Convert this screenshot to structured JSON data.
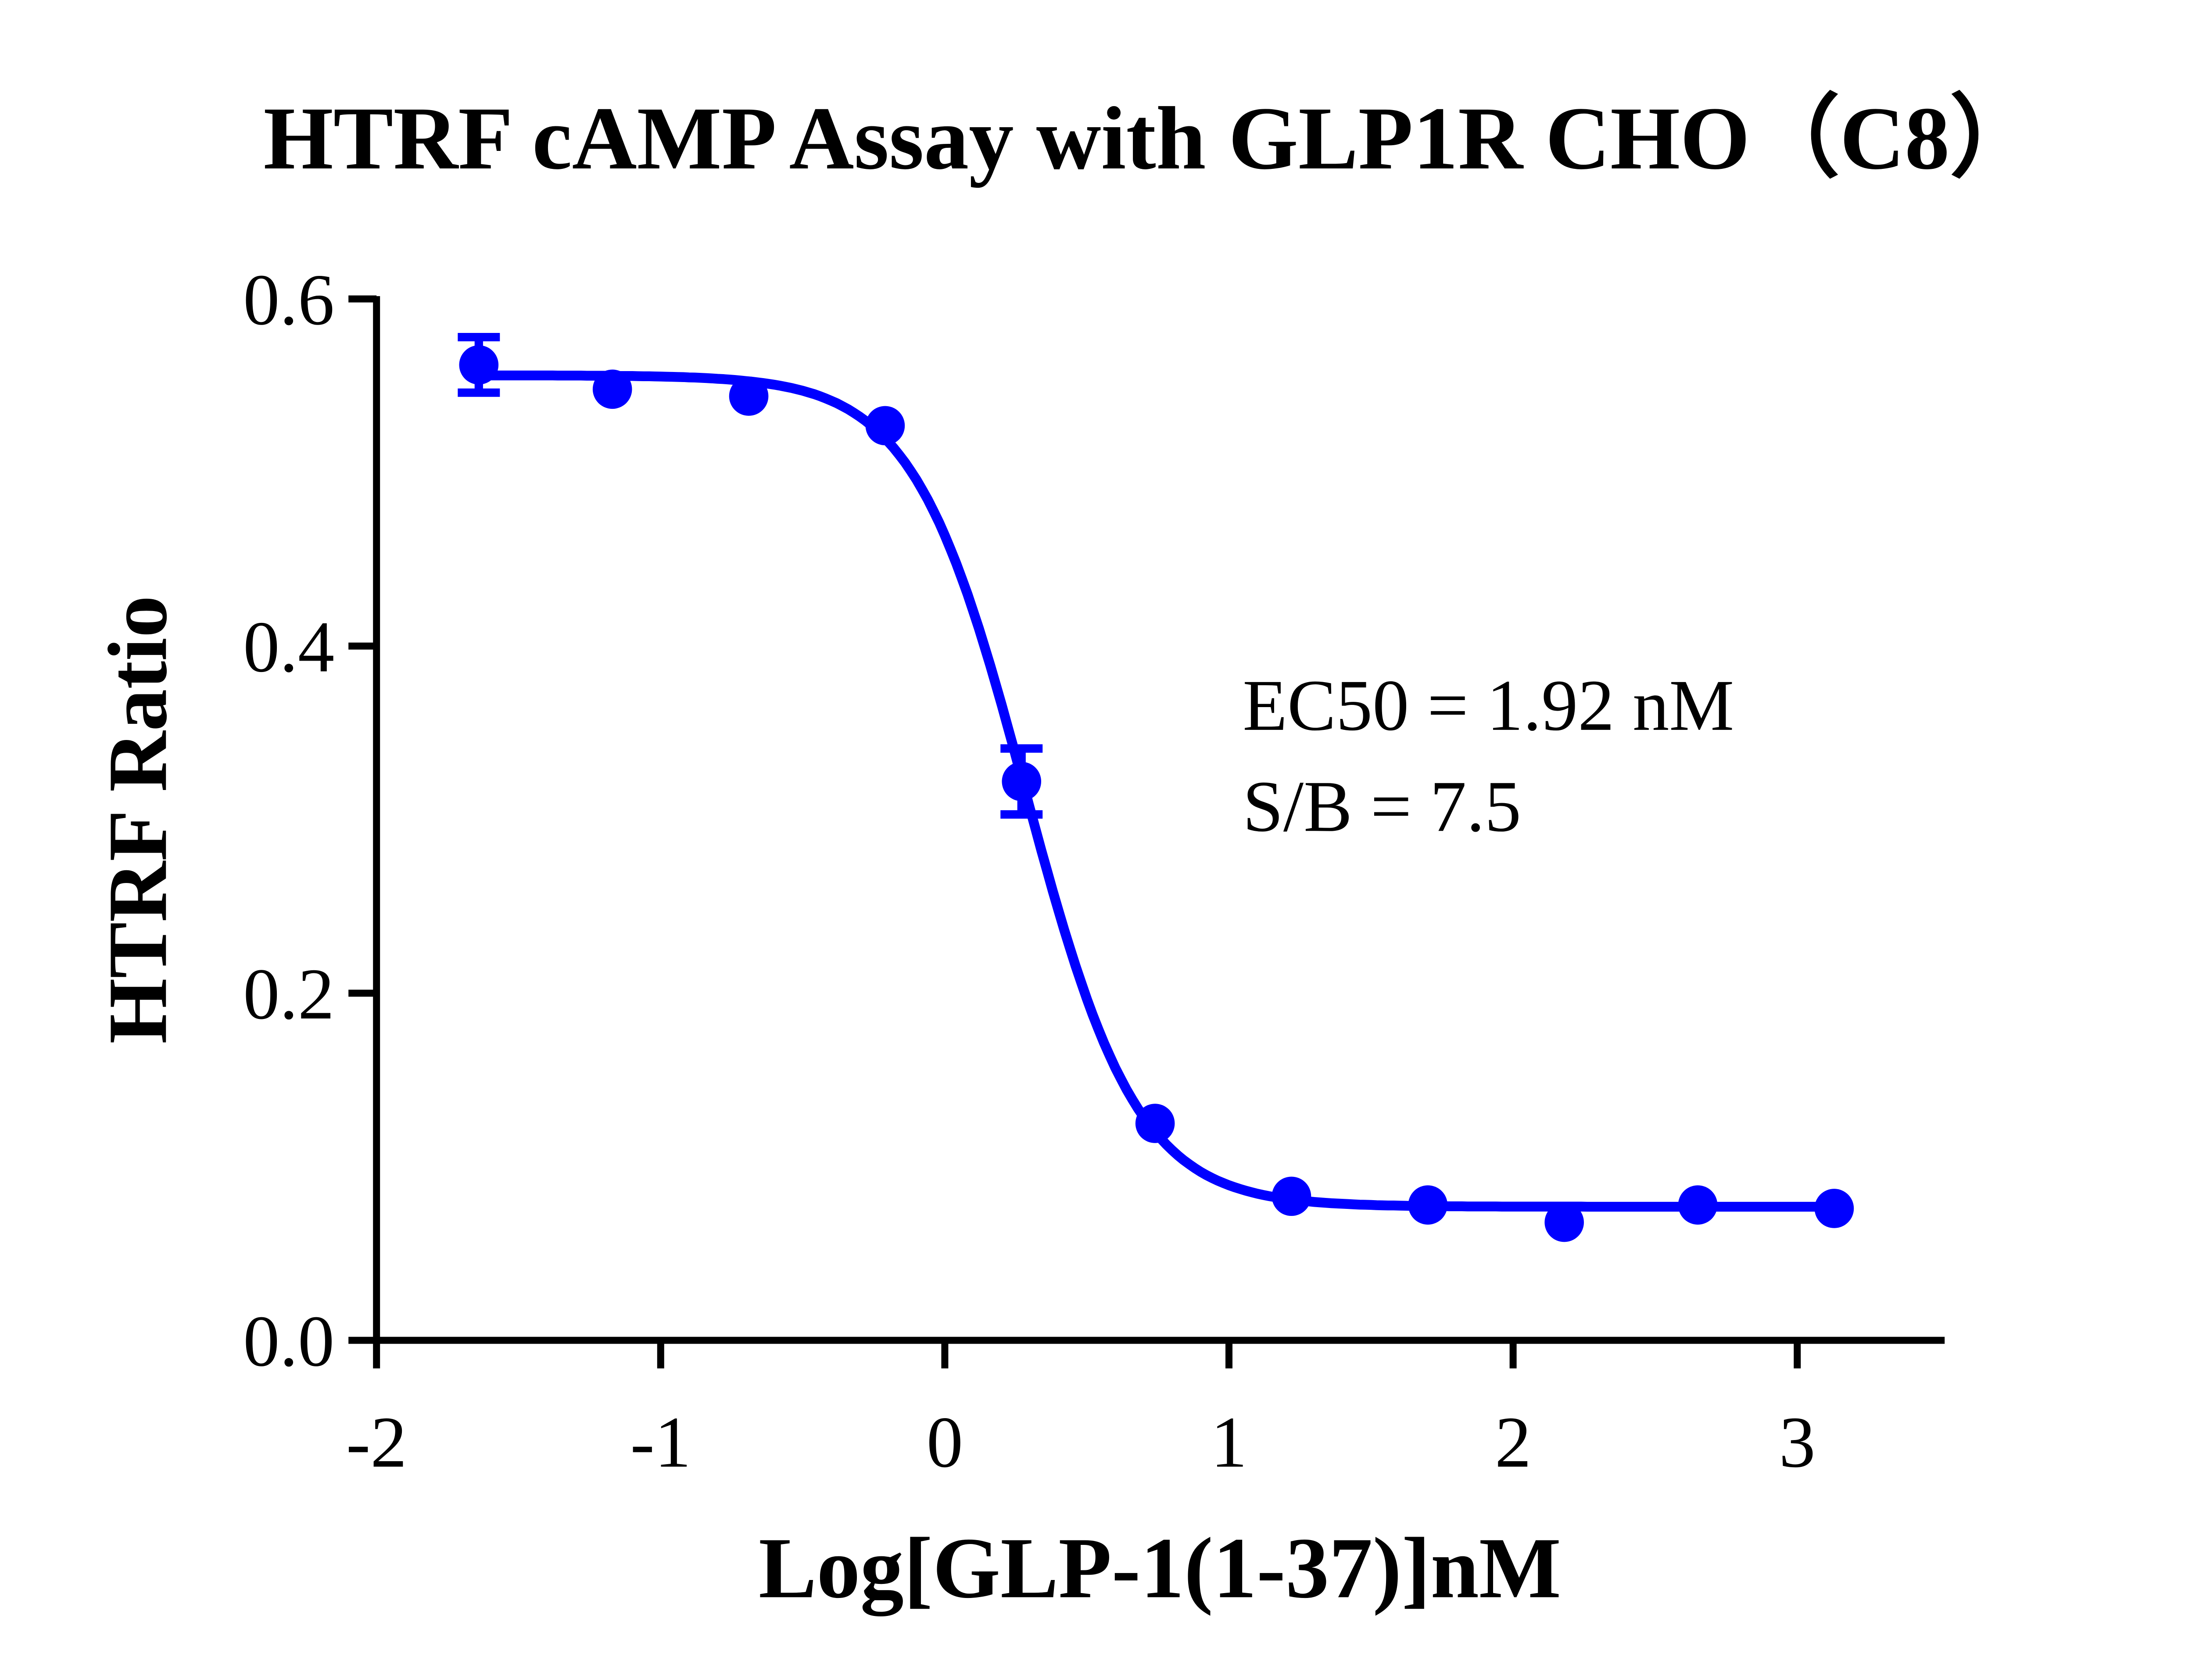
{
  "chart_data": {
    "type": "scatter",
    "title": "HTRF cAMP Assay with GLP1R CHO（C8）",
    "xlabel": "Log[GLP-1(1-37)]nM",
    "ylabel": "HTRF Ratio",
    "xlim": [
      -2,
      3.5
    ],
    "ylim": [
      0,
      0.6
    ],
    "xticks": [
      "-2",
      "-1",
      "0",
      "1",
      "2",
      "3"
    ],
    "yticks": [
      "0.0",
      "0.2",
      "0.4",
      "0.6"
    ],
    "grid": false,
    "color": "#0000ff",
    "series": [
      {
        "x": [
          -1.64,
          -1.17,
          -0.69,
          -0.21,
          0.27,
          0.74,
          1.22,
          1.7,
          2.18,
          2.65,
          3.13
        ],
        "y": [
          0.562,
          0.548,
          0.544,
          0.527,
          0.322,
          0.125,
          0.083,
          0.078,
          0.068,
          0.078,
          0.076
        ],
        "error": [
          0.016,
          0.003,
          0.003,
          0.003,
          0.019,
          0.003,
          0.003,
          0.003,
          0.003,
          0.003,
          0.003
        ]
      }
    ],
    "fit": {
      "model": "4PL",
      "top": 0.556,
      "bottom": 0.077,
      "logEC50": 0.283,
      "hill": 2.2
    },
    "annotations": [
      "EC50 = 1.92 nM",
      "S/B = 7.5"
    ]
  }
}
